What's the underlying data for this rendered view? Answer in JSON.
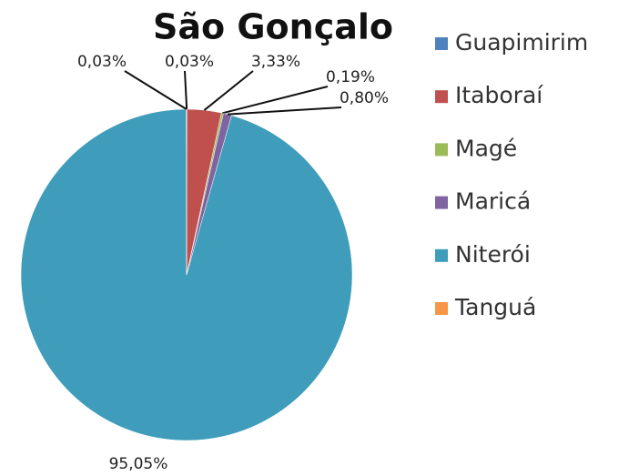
{
  "chart_data": {
    "type": "pie",
    "title": "São Gonçalo",
    "categories": [
      "Guapimirim",
      "Itaboraí",
      "Magé",
      "Maricá",
      "Niterói",
      "Tanguá"
    ],
    "values": [
      0.03,
      3.33,
      0.19,
      0.8,
      95.05,
      0.03
    ],
    "value_labels": [
      "0,03%",
      "3,33%",
      "0,19%",
      "0,80%",
      "95,05%",
      "0,03%"
    ],
    "colors": [
      "#4f81bd",
      "#c0504d",
      "#9bbb59",
      "#8064a2",
      "#3f9dbb",
      "#f79646"
    ],
    "legend": "right"
  }
}
